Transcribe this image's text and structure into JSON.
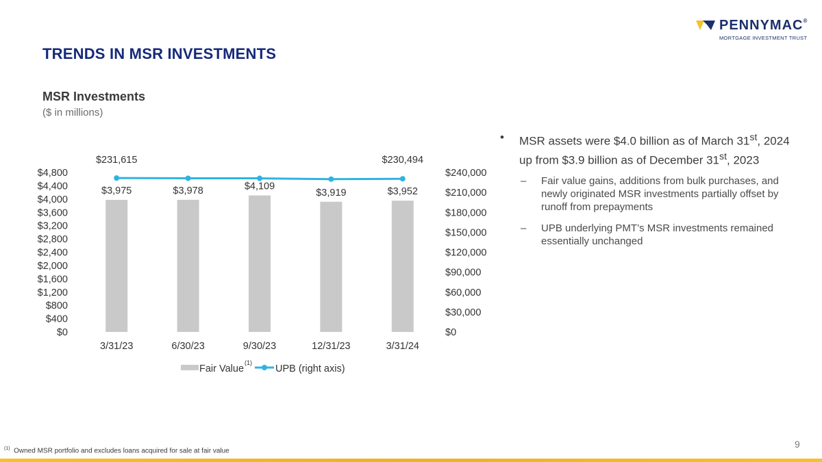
{
  "logo": {
    "name": "PENNYMAC",
    "reg": "®",
    "tagline": "MORTGAGE INVESTMENT TRUST"
  },
  "header": {
    "title": "TRENDS IN MSR INVESTMENTS"
  },
  "chart_data": {
    "type": "bar",
    "title": "MSR Investments",
    "subtitle": "($ in millions)",
    "categories": [
      "3/31/23",
      "6/30/23",
      "9/30/23",
      "12/31/23",
      "3/31/24"
    ],
    "series": [
      {
        "name": "Fair Value",
        "footnote_marker": "(1)",
        "type": "bar",
        "axis": "left",
        "values": [
          3975,
          3978,
          4109,
          3919,
          3952
        ],
        "labels": [
          "$3,975",
          "$3,978",
          "$4,109",
          "$3,919",
          "$3,952"
        ],
        "color": "#c9c9c9"
      },
      {
        "name": "UPB (right axis)",
        "type": "line",
        "axis": "right",
        "values": [
          231615,
          231300,
          231200,
          230000,
          230494
        ],
        "labels": [
          "$231,615",
          "",
          "",
          "",
          "$230,494"
        ],
        "color": "#2fb3e0"
      }
    ],
    "y_left": {
      "ylim": [
        0,
        4800
      ],
      "ticks": [
        "$0",
        "$400",
        "$800",
        "$1,200",
        "$1,600",
        "$2,000",
        "$2,400",
        "$2,800",
        "$3,200",
        "$3,600",
        "$4,000",
        "$4,400",
        "$4,800"
      ]
    },
    "y_right": {
      "ylim": [
        0,
        240000
      ],
      "ticks": [
        "$0",
        "$30,000",
        "$60,000",
        "$90,000",
        "$120,000",
        "$150,000",
        "$180,000",
        "$210,000",
        "$240,000"
      ]
    },
    "legend_position": "bottom",
    "grid": false
  },
  "bullets": {
    "main": {
      "symbol": "•",
      "part1": "MSR assets were $4.0 billion as of March 31",
      "sup1": "st",
      "part2": ", 2024 up from $3.9 billion as of December 31",
      "sup2": "st",
      "part3": ", 2023"
    },
    "subs": [
      {
        "symbol": "–",
        "text": "Fair value gains, additions from bulk purchases, and newly originated MSR investments partially offset by runoff from prepayments"
      },
      {
        "symbol": "–",
        "text": "UPB underlying PMT’s MSR investments remained essentially unchanged"
      }
    ]
  },
  "footer": {
    "page_number": "9",
    "footnote_marker": "(1)",
    "footnote_text": "Owned MSR portfolio and excludes loans acquired for sale at fair value"
  },
  "colors": {
    "title": "#16297a",
    "bar": "#c9c9c9",
    "line": "#2fb3e0",
    "logo_navy": "#1b2f6b",
    "logo_yellow": "#f6c12c",
    "footer_band": "#f6c12c"
  }
}
